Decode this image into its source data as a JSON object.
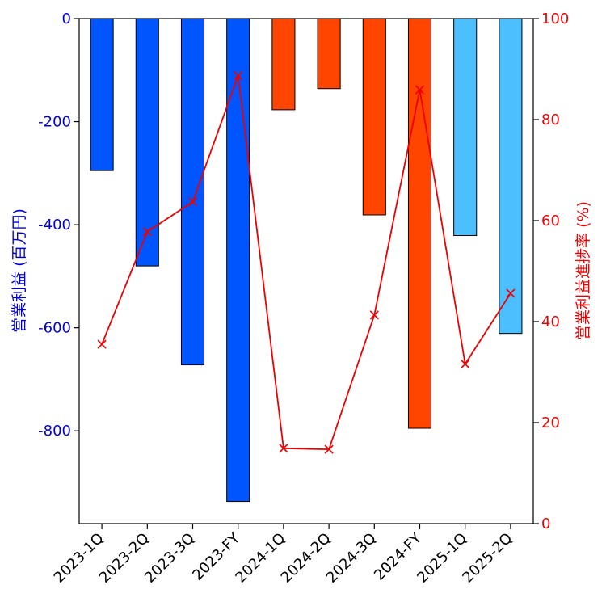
{
  "chart_data": {
    "type": "bar",
    "categories": [
      "2023-1Q",
      "2023-2Q",
      "2023-3Q",
      "2023-FY",
      "2024-1Q",
      "2024-2Q",
      "2024-3Q",
      "2024-FY",
      "2025-1Q",
      "2025-2Q"
    ],
    "series": [
      {
        "name": "営業利益",
        "type": "bar",
        "axis": "left",
        "values": [
          -295,
          -480,
          -672,
          -937,
          -177,
          -136,
          -381,
          -795,
          -421,
          -611
        ],
        "colors": [
          "#0055ff",
          "#0055ff",
          "#0055ff",
          "#0055ff",
          "#ff4500",
          "#ff4500",
          "#ff4500",
          "#ff4500",
          "#4bbfff",
          "#4bbfff"
        ]
      },
      {
        "name": "営業利益進捗率",
        "type": "line",
        "axis": "right",
        "values": [
          35.5,
          57.8,
          63.7,
          88.7,
          14.9,
          14.7,
          41.3,
          85.9,
          31.6,
          45.6
        ],
        "color": "#ee0000",
        "marker": "x"
      }
    ],
    "ylabel": "営業利益 (百万円)",
    "ylabel_right": "営業利益進捗率 (%)",
    "ylim": [
      -980,
      0
    ],
    "yticks": [
      0,
      -200,
      -400,
      -600,
      -800
    ],
    "ylim_right": [
      0,
      100
    ],
    "yticks_right": [
      0,
      20,
      40,
      60,
      80,
      100
    ],
    "left_axis_color": "#0000dd",
    "right_axis_color": "#ee0000",
    "grid": false
  }
}
